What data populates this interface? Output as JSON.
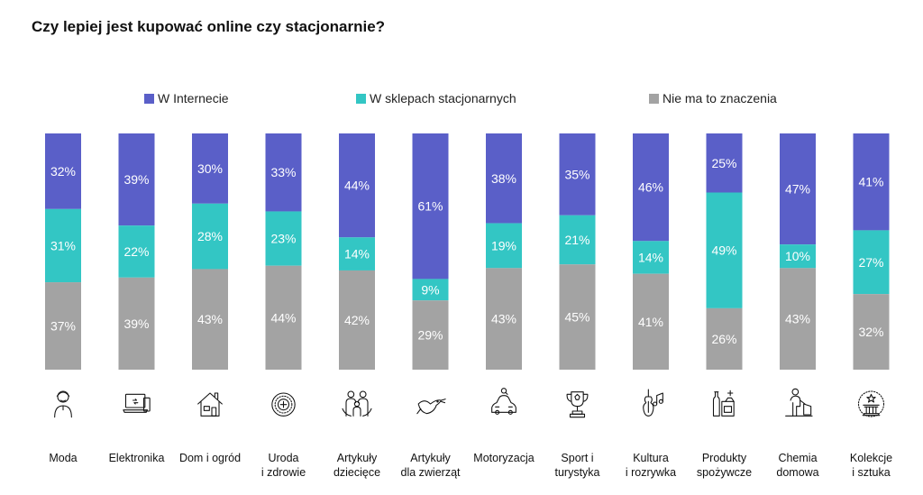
{
  "chart_data": {
    "type": "bar",
    "stacked": true,
    "normalized": true,
    "title": "Czy lepiej jest kupować online czy stacjonarnie?",
    "legend_position": "top",
    "grid": false,
    "ylim": [
      0,
      100
    ],
    "categories": [
      [
        "Moda"
      ],
      [
        "Elektronika"
      ],
      [
        "Dom i ogród"
      ],
      [
        "Uroda",
        "i zdrowie"
      ],
      [
        "Artykuły",
        "dziecięce"
      ],
      [
        "Artykuły",
        "dla zwierząt"
      ],
      [
        "Motoryzacja"
      ],
      [
        "Sport i",
        "turystyka"
      ],
      [
        "Kultura",
        "i rozrywka"
      ],
      [
        "Produkty",
        "spożywcze"
      ],
      [
        "Chemia",
        "domowa"
      ],
      [
        "Kolekcje",
        "i sztuka"
      ]
    ],
    "category_icons": [
      "person-icon",
      "laptop-icon",
      "house-icon",
      "cosmetics-icon",
      "family-icon",
      "bird-icon",
      "car-icon",
      "trophy-icon",
      "violin-icon",
      "groceries-icon",
      "cleaning-icon",
      "art-column-icon"
    ],
    "series": [
      {
        "name": "W Internecie",
        "color": "#5a5fc8",
        "values": [
          32,
          39,
          30,
          33,
          44,
          61,
          38,
          35,
          46,
          25,
          47,
          41
        ]
      },
      {
        "name": "W sklepach stacjonarnych",
        "color": "#33c6c4",
        "values": [
          31,
          22,
          28,
          23,
          14,
          9,
          19,
          21,
          14,
          49,
          10,
          27
        ]
      },
      {
        "name": "Nie ma to znaczenia",
        "color": "#a3a3a3",
        "values": [
          37,
          39,
          43,
          44,
          42,
          29,
          43,
          45,
          41,
          26,
          43,
          32
        ]
      }
    ]
  }
}
